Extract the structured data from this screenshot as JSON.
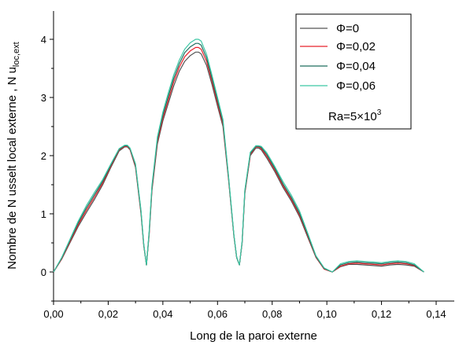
{
  "chart_data": {
    "type": "line",
    "xlabel": "Long de la paroi externe",
    "ylabel_main": "Nombre de N usselt local externe , N u",
    "ylabel_sub": "loc,ext",
    "xlim": [
      0.0,
      0.145
    ],
    "ylim": [
      -0.5,
      4.5
    ],
    "x_ticks": [
      0.0,
      0.02,
      0.04,
      0.06,
      0.08,
      0.1,
      0.12,
      0.14
    ],
    "x_tick_labels": [
      "0,00",
      "0,02",
      "0,04",
      "0,06",
      "0,08",
      "0,10",
      "0,12",
      "0,14"
    ],
    "y_ticks": [
      0,
      1,
      2,
      3,
      4
    ],
    "y_tick_labels": [
      "0",
      "1",
      "2",
      "3",
      "4"
    ],
    "grid": false,
    "legend_position": "top-right",
    "annotation": {
      "prefix": "Ra=5×10",
      "sup": "3"
    },
    "x": [
      0.0,
      0.003,
      0.006,
      0.009,
      0.012,
      0.015,
      0.018,
      0.021,
      0.024,
      0.026,
      0.027,
      0.028,
      0.03,
      0.032,
      0.033,
      0.034,
      0.035,
      0.036,
      0.038,
      0.04,
      0.042,
      0.044,
      0.046,
      0.048,
      0.05,
      0.052,
      0.053,
      0.054,
      0.056,
      0.058,
      0.06,
      0.062,
      0.064,
      0.066,
      0.067,
      0.068,
      0.069,
      0.07,
      0.072,
      0.074,
      0.075,
      0.076,
      0.078,
      0.081,
      0.084,
      0.087,
      0.09,
      0.093,
      0.096,
      0.099,
      0.102,
      0.105,
      0.108,
      0.111,
      0.114,
      0.117,
      0.12,
      0.123,
      0.126,
      0.129,
      0.132,
      0.1355
    ],
    "series": [
      {
        "name": "Φ=0",
        "color": "#555555",
        "values": [
          0.0,
          0.22,
          0.5,
          0.78,
          1.02,
          1.25,
          1.5,
          1.8,
          2.08,
          2.15,
          2.15,
          2.1,
          1.8,
          1.0,
          0.45,
          0.12,
          0.65,
          1.4,
          2.2,
          2.6,
          2.9,
          3.2,
          3.45,
          3.62,
          3.72,
          3.78,
          3.78,
          3.75,
          3.55,
          3.22,
          2.85,
          2.5,
          1.6,
          0.62,
          0.25,
          0.12,
          0.5,
          1.35,
          2.0,
          2.13,
          2.13,
          2.1,
          1.96,
          1.72,
          1.45,
          1.22,
          0.95,
          0.6,
          0.25,
          0.05,
          0.0,
          0.09,
          0.13,
          0.13,
          0.12,
          0.11,
          0.1,
          0.12,
          0.13,
          0.12,
          0.1,
          0.0
        ]
      },
      {
        "name": "Φ=0,02",
        "color": "#e8202a",
        "values": [
          0.0,
          0.23,
          0.52,
          0.81,
          1.06,
          1.29,
          1.53,
          1.82,
          2.1,
          2.16,
          2.16,
          2.11,
          1.82,
          1.02,
          0.46,
          0.12,
          0.67,
          1.43,
          2.24,
          2.65,
          2.96,
          3.27,
          3.52,
          3.7,
          3.8,
          3.86,
          3.86,
          3.83,
          3.62,
          3.28,
          2.9,
          2.54,
          1.62,
          0.62,
          0.25,
          0.12,
          0.5,
          1.37,
          2.02,
          2.15,
          2.15,
          2.12,
          1.99,
          1.75,
          1.48,
          1.25,
          0.98,
          0.62,
          0.26,
          0.05,
          0.0,
          0.1,
          0.14,
          0.15,
          0.14,
          0.13,
          0.12,
          0.14,
          0.15,
          0.14,
          0.11,
          0.0
        ]
      },
      {
        "name": "Φ=0,04",
        "color": "#1d6e5e",
        "values": [
          0.0,
          0.24,
          0.54,
          0.84,
          1.1,
          1.33,
          1.56,
          1.84,
          2.11,
          2.17,
          2.17,
          2.12,
          1.84,
          1.04,
          0.47,
          0.12,
          0.69,
          1.46,
          2.28,
          2.7,
          3.02,
          3.33,
          3.58,
          3.77,
          3.87,
          3.93,
          3.93,
          3.9,
          3.68,
          3.33,
          2.95,
          2.58,
          1.64,
          0.63,
          0.25,
          0.12,
          0.51,
          1.39,
          2.04,
          2.16,
          2.16,
          2.14,
          2.02,
          1.78,
          1.51,
          1.28,
          1.01,
          0.64,
          0.27,
          0.06,
          0.0,
          0.12,
          0.16,
          0.17,
          0.16,
          0.15,
          0.14,
          0.16,
          0.17,
          0.16,
          0.12,
          0.0
        ]
      },
      {
        "name": "Φ=0,06",
        "color": "#3cc7a5",
        "values": [
          0.0,
          0.25,
          0.56,
          0.87,
          1.14,
          1.37,
          1.59,
          1.86,
          2.12,
          2.18,
          2.18,
          2.13,
          1.86,
          1.06,
          0.48,
          0.12,
          0.71,
          1.49,
          2.32,
          2.75,
          3.08,
          3.39,
          3.64,
          3.83,
          3.94,
          4.0,
          4.0,
          3.97,
          3.74,
          3.38,
          3.0,
          2.62,
          1.66,
          0.64,
          0.26,
          0.12,
          0.52,
          1.41,
          2.06,
          2.17,
          2.17,
          2.16,
          2.05,
          1.81,
          1.55,
          1.32,
          1.05,
          0.67,
          0.28,
          0.07,
          0.0,
          0.14,
          0.18,
          0.19,
          0.18,
          0.17,
          0.16,
          0.18,
          0.19,
          0.18,
          0.14,
          0.0
        ]
      }
    ]
  }
}
